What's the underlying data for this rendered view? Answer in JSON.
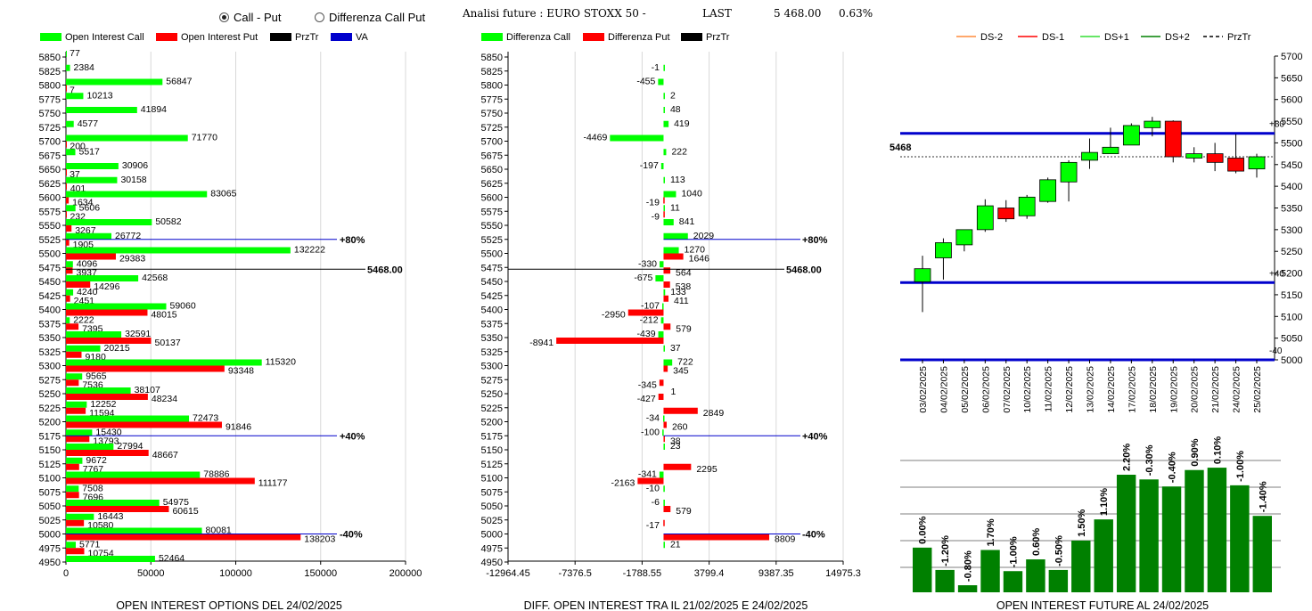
{
  "controls": {
    "radio_call_put": "Call - Put",
    "radio_diff": "Differenza Call Put",
    "selected": "call_put"
  },
  "header": {
    "title": "Analisi future : EURO STOXX 50 -",
    "last_label": "LAST",
    "last_value": "5 468.00",
    "change": "0.63%"
  },
  "colors": {
    "green": "#00ff00",
    "red": "#ff0000",
    "blue": "#0000cc",
    "black": "#000000",
    "dark_green": "#008000",
    "orange": "#ff8c3c"
  },
  "price_label": "5468.00",
  "chart_data": [
    {
      "type": "bar",
      "title": "OPEN INTEREST OPTIONS DEL 24/02/2025",
      "legend": [
        "Open Interest Call",
        "Open Interest Put",
        "PrzTr",
        "VA"
      ],
      "categories": [
        "5850",
        "5825",
        "5800",
        "5775",
        "5750",
        "5725",
        "5700",
        "5675",
        "5650",
        "5625",
        "5600",
        "5575",
        "5550",
        "5525",
        "5500",
        "5475",
        "5450",
        "5425",
        "5400",
        "5375",
        "5350",
        "5325",
        "5300",
        "5275",
        "5250",
        "5225",
        "5200",
        "5175",
        "5150",
        "5125",
        "5100",
        "5075",
        "5050",
        "5025",
        "5000",
        "4975",
        "4950"
      ],
      "call": [
        77,
        2384,
        56847,
        10213,
        41894,
        4577,
        71770,
        5517,
        30906,
        30158,
        83065,
        5606,
        50582,
        26772,
        132222,
        4096,
        42568,
        4240,
        59060,
        2222,
        32591,
        20215,
        115320,
        9565,
        38107,
        12252,
        72473,
        15430,
        27994,
        9672,
        78886,
        7508,
        54975,
        16443,
        80081,
        5771,
        52464
      ],
      "put": [
        null,
        null,
        7,
        null,
        null,
        null,
        200,
        null,
        37,
        401,
        1634,
        232,
        3267,
        1905,
        29383,
        3937,
        14296,
        2451,
        48015,
        7395,
        50137,
        9180,
        93348,
        7536,
        48234,
        11594,
        91846,
        13793,
        48667,
        7767,
        111177,
        7696,
        60615,
        10580,
        138203,
        10754,
        null
      ],
      "xticks": [
        "0",
        "50000",
        "100000",
        "150000",
        "200000"
      ],
      "xlim": [
        0,
        200000
      ],
      "markers": [
        {
          "strike": "5525",
          "label": "+80%"
        },
        {
          "strike": "5175",
          "label": "+40%"
        },
        {
          "strike": "5000",
          "label": "-40%"
        }
      ]
    },
    {
      "type": "bar",
      "title": "DIFF. OPEN INTEREST TRA IL 21/02/2025 E 24/02/2025",
      "legend": [
        "Differenza Call",
        "Differenza Put",
        "PrzTr"
      ],
      "categories": [
        "5850",
        "5825",
        "5800",
        "5775",
        "5750",
        "5725",
        "5700",
        "5675",
        "5650",
        "5625",
        "5600",
        "5575",
        "5550",
        "5525",
        "5500",
        "5475",
        "5450",
        "5425",
        "5400",
        "5375",
        "5350",
        "5325",
        "5300",
        "5275",
        "5250",
        "5225",
        "5200",
        "5175",
        "5150",
        "5125",
        "5100",
        "5075",
        "5050",
        "5025",
        "5000",
        "4975",
        "4950"
      ],
      "diff_call": [
        null,
        -1,
        -455,
        2,
        48,
        419,
        -4469,
        222,
        -197,
        113,
        1040,
        11,
        841,
        2029,
        1270,
        -330,
        -675,
        133,
        -107,
        -212,
        -439,
        37,
        722,
        null,
        null,
        null,
        -34,
        -100,
        23,
        null,
        -341,
        -10,
        -6,
        null,
        null,
        21,
        null
      ],
      "diff_put": [
        null,
        null,
        null,
        null,
        null,
        null,
        null,
        null,
        null,
        null,
        -19,
        -9,
        null,
        null,
        1646,
        564,
        538,
        411,
        -2950,
        579,
        -8941,
        null,
        345,
        -345,
        -427,
        2849,
        260,
        38,
        null,
        2295,
        -2163,
        null,
        579,
        -17,
        8809,
        null,
        null
      ],
      "put_label_1": "1",
      "xticks": [
        "-12964.45",
        "-7376.5",
        "-1788.55",
        "3799.4",
        "9387.35",
        "14975.3"
      ],
      "xlim": [
        -12964.45,
        14975.3
      ],
      "markers": [
        {
          "strike": "5525",
          "label": "+80%"
        },
        {
          "strike": "5175",
          "label": "+40%"
        },
        {
          "strike": "5000",
          "label": "-40%"
        }
      ]
    },
    {
      "type": "candlestick",
      "legend": [
        "DS-2",
        "DS-1",
        "DS+1",
        "DS+2",
        "PrzTr"
      ],
      "dates": [
        "03/02/2025",
        "04/02/2025",
        "05/02/2025",
        "06/02/2025",
        "07/02/2025",
        "10/02/2025",
        "11/02/2025",
        "12/02/2025",
        "13/02/2025",
        "14/02/2025",
        "17/02/2025",
        "18/02/2025",
        "19/02/2025",
        "20/02/2025",
        "21/02/2025",
        "24/02/2025",
        "25/02/2025"
      ],
      "candles": [
        {
          "o": 5180,
          "h": 5240,
          "l": 5110,
          "c": 5210
        },
        {
          "o": 5235,
          "h": 5280,
          "l": 5185,
          "c": 5270
        },
        {
          "o": 5265,
          "h": 5300,
          "l": 5250,
          "c": 5300
        },
        {
          "o": 5300,
          "h": 5370,
          "l": 5295,
          "c": 5355
        },
        {
          "o": 5350,
          "h": 5368,
          "l": 5318,
          "c": 5325
        },
        {
          "o": 5332,
          "h": 5380,
          "l": 5325,
          "c": 5375
        },
        {
          "o": 5365,
          "h": 5420,
          "l": 5362,
          "c": 5415
        },
        {
          "o": 5410,
          "h": 5460,
          "l": 5365,
          "c": 5455
        },
        {
          "o": 5460,
          "h": 5510,
          "l": 5440,
          "c": 5478
        },
        {
          "o": 5475,
          "h": 5535,
          "l": 5475,
          "c": 5490
        },
        {
          "o": 5495,
          "h": 5545,
          "l": 5495,
          "c": 5540
        },
        {
          "o": 5535,
          "h": 5560,
          "l": 5515,
          "c": 5550
        },
        {
          "o": 5550,
          "h": 5552,
          "l": 5455,
          "c": 5468
        },
        {
          "o": 5465,
          "h": 5490,
          "l": 5455,
          "c": 5475
        },
        {
          "o": 5475,
          "h": 5500,
          "l": 5435,
          "c": 5455
        },
        {
          "o": 5465,
          "h": 5520,
          "l": 5430,
          "c": 5435
        },
        {
          "o": 5440,
          "h": 5475,
          "l": 5420,
          "c": 5468
        }
      ],
      "ylim": [
        5000,
        5700
      ],
      "yticks": [
        "5000",
        "5050",
        "5100",
        "5150",
        "5200",
        "5250",
        "5300",
        "5350",
        "5400",
        "5450",
        "5500",
        "5550",
        "5600",
        "5650",
        "5700"
      ],
      "price_label": "5468",
      "hlines": [
        {
          "value": 5522,
          "label": "+80"
        },
        {
          "value": 5178,
          "label": "+40"
        },
        {
          "value": 5000,
          "label": "-40"
        }
      ]
    },
    {
      "type": "bar",
      "title": "OPEN INTEREST FUTURE AL 24/02/2025",
      "labels": [
        "0.00%",
        "-1.20%",
        "-0.80%",
        "1.70%",
        "-1.00%",
        "0.60%",
        "-0.50%",
        "1.50%",
        "1.10%",
        "2.20%",
        "-0.30%",
        "-0.40%",
        "0.90%",
        "0.10%",
        "-1.00%",
        "-1.40%"
      ],
      "values": [
        0.38,
        0.19,
        0.06,
        0.36,
        0.18,
        0.28,
        0.19,
        0.44,
        0.62,
        1.0,
        0.96,
        0.9,
        1.04,
        1.06,
        0.91,
        0.65
      ]
    }
  ]
}
